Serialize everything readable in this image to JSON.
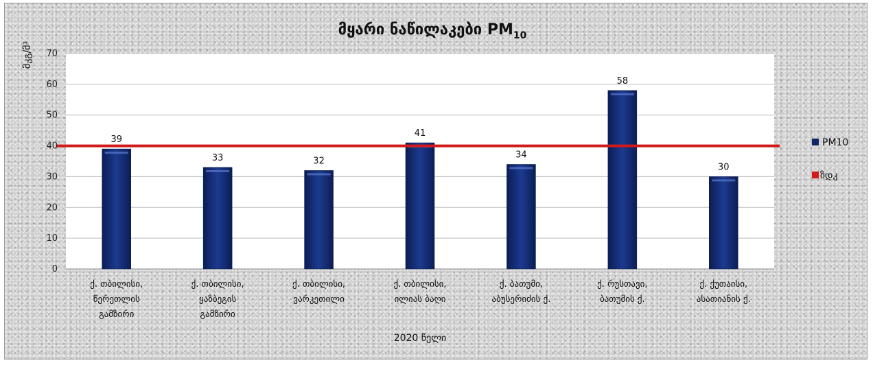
{
  "chart_data": {
    "type": "bar",
    "title": "მყარი ნაწილაკები PM",
    "title_subscript": "10",
    "ylabel": "მკგ/მ³",
    "xlabel": "2020 წელი",
    "ylim": [
      0,
      70
    ],
    "yticks": [
      0,
      10,
      20,
      30,
      40,
      50,
      60,
      70
    ],
    "grid": true,
    "legend_position": "right",
    "categories": [
      [
        "ქ. თბილისი,",
        "წერეთლის",
        "გამზირი"
      ],
      [
        "ქ. თბილისი,",
        "ყაზბეგის",
        "გამზირი"
      ],
      [
        "ქ. თბილისი,",
        "ვარკეთილი"
      ],
      [
        "ქ. თბილისი,",
        "ილიას ბაღი"
      ],
      [
        "ქ. ბათუმი,",
        "აბუსერიძის ქ."
      ],
      [
        "ქ. რუსთავი,",
        "ბათუმის ქ."
      ],
      [
        "ქ. ქუთაისი,",
        "ასათიანის ქ."
      ]
    ],
    "series": [
      {
        "name": "PM10",
        "values": [
          39,
          33,
          32,
          41,
          34,
          58,
          30
        ],
        "color": "#10266b"
      }
    ],
    "reference_line": {
      "name": "ზდკ",
      "value": 40,
      "color": "#d11a1a"
    }
  }
}
